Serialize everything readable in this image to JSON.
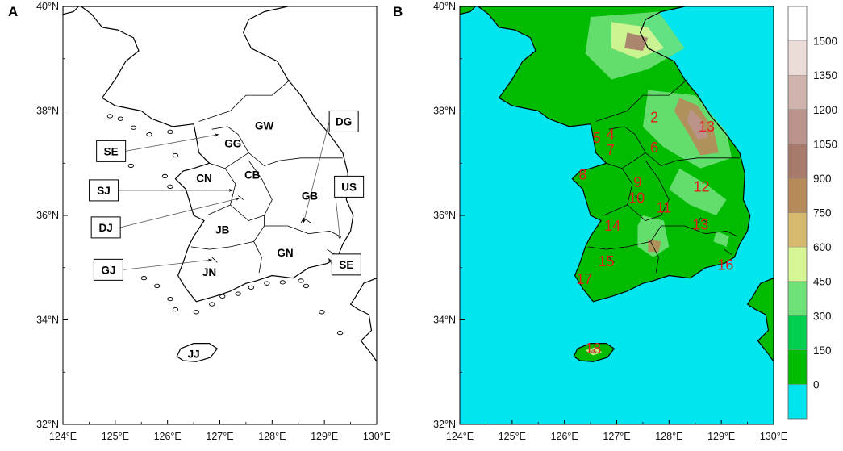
{
  "panel_a": {
    "letter": "A",
    "regions": [
      {
        "label": "GW",
        "lon": 127.85,
        "lat": 37.72
      },
      {
        "label": "GG",
        "lon": 127.25,
        "lat": 37.38
      },
      {
        "label": "CN",
        "lon": 126.7,
        "lat": 36.72
      },
      {
        "label": "CB",
        "lon": 127.62,
        "lat": 36.78
      },
      {
        "label": "GB",
        "lon": 128.72,
        "lat": 36.38
      },
      {
        "label": "JB",
        "lon": 127.05,
        "lat": 35.73
      },
      {
        "label": "GN",
        "lon": 128.25,
        "lat": 35.29
      },
      {
        "label": "JN",
        "lon": 126.8,
        "lat": 34.92
      },
      {
        "label": "JJ",
        "lon": 126.5,
        "lat": 33.35
      }
    ],
    "callouts": [
      {
        "label": "SE",
        "box_lon": 124.92,
        "box_lat": 37.23,
        "target_lon": 126.98,
        "target_lat": 37.55
      },
      {
        "label": "SJ",
        "box_lon": 124.78,
        "box_lat": 36.48,
        "target_lon": 127.25,
        "target_lat": 36.48
      },
      {
        "label": "DJ",
        "box_lon": 124.82,
        "box_lat": 35.77,
        "target_lon": 127.38,
        "target_lat": 36.33
      },
      {
        "label": "GJ",
        "box_lon": 124.87,
        "box_lat": 34.96,
        "target_lon": 126.85,
        "target_lat": 35.15
      },
      {
        "label": "DG",
        "box_lon": 129.37,
        "box_lat": 37.8,
        "target_lon": 128.6,
        "target_lat": 35.86
      },
      {
        "label": "US",
        "box_lon": 129.47,
        "box_lat": 36.55,
        "target_lon": 129.3,
        "target_lat": 35.53
      },
      {
        "label": "SE",
        "box_lon": 129.42,
        "box_lat": 35.06,
        "target_lon": 129.08,
        "target_lat": 35.18
      }
    ]
  },
  "panel_b": {
    "letter": "B",
    "sites": [
      {
        "label": "2",
        "lon": 127.72,
        "lat": 37.88
      },
      {
        "label": "13",
        "lon": 128.72,
        "lat": 37.7
      },
      {
        "label": "5",
        "lon": 126.62,
        "lat": 37.48
      },
      {
        "label": "4",
        "lon": 126.88,
        "lat": 37.55
      },
      {
        "label": "7",
        "lon": 126.88,
        "lat": 37.25
      },
      {
        "label": "6",
        "lon": 127.72,
        "lat": 37.3
      },
      {
        "label": "8",
        "lon": 126.35,
        "lat": 36.78
      },
      {
        "label": "9",
        "lon": 127.4,
        "lat": 36.63
      },
      {
        "label": "12",
        "lon": 128.62,
        "lat": 36.55
      },
      {
        "label": "10",
        "lon": 127.38,
        "lat": 36.33
      },
      {
        "label": "11",
        "lon": 127.9,
        "lat": 36.15
      },
      {
        "label": "14",
        "lon": 126.92,
        "lat": 35.8
      },
      {
        "label": "13",
        "lon": 128.6,
        "lat": 35.82
      },
      {
        "label": "15",
        "lon": 126.8,
        "lat": 35.12
      },
      {
        "label": "16",
        "lon": 129.08,
        "lat": 35.05
      },
      {
        "label": "17",
        "lon": 126.38,
        "lat": 34.78
      },
      {
        "label": "18",
        "lon": 126.55,
        "lat": 33.45
      }
    ],
    "colorbar": {
      "levels": [
        "0",
        "150",
        "300",
        "450",
        "600",
        "750",
        "900",
        "1050",
        "1200",
        "1350",
        "1500"
      ],
      "colors": [
        "#00e5ee",
        "#00bb00",
        "#00d050",
        "#6ee178",
        "#d6f595",
        "#d6b96f",
        "#b78a5a",
        "#a77a6c",
        "#bb958d",
        "#cfb3ac",
        "#ecdcd8",
        "#ffffff"
      ]
    }
  },
  "axes": {
    "x_ticks": [
      "124°E",
      "125°E",
      "126°E",
      "127°E",
      "128°E",
      "129°E",
      "130°E"
    ],
    "y_ticks": [
      "32°N",
      "34°N",
      "36°N",
      "38°N",
      "40°N"
    ],
    "lon_range": [
      124,
      130
    ],
    "lat_range": [
      32,
      40
    ]
  },
  "colors": {
    "sea": "#00e5ee",
    "land_low": "#00bb00",
    "label_red": "#e0201c"
  }
}
